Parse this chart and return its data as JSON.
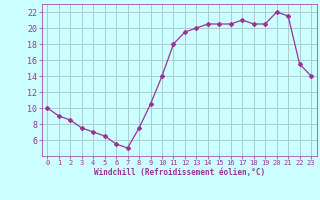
{
  "x": [
    0,
    1,
    2,
    3,
    4,
    5,
    6,
    7,
    8,
    9,
    10,
    11,
    12,
    13,
    14,
    15,
    16,
    17,
    18,
    19,
    20,
    21,
    22,
    23
  ],
  "y": [
    10,
    9,
    8.5,
    7.5,
    7,
    6.5,
    5.5,
    5,
    7.5,
    10.5,
    14,
    18,
    19.5,
    20,
    20.5,
    20.5,
    20.5,
    21,
    20.5,
    20.5,
    22,
    21.5,
    15.5,
    14
  ],
  "line_color": "#993399",
  "marker": "D",
  "marker_size": 2,
  "bg_color": "#ccffff",
  "grid_color": "#aacccc",
  "xlabel": "Windchill (Refroidissement éolien,°C)",
  "xlabel_color": "#993399",
  "tick_color": "#993399",
  "ylim": [
    4,
    23
  ],
  "xlim": [
    -0.5,
    23.5
  ],
  "yticks": [
    6,
    8,
    10,
    12,
    14,
    16,
    18,
    20,
    22
  ],
  "xticks": [
    0,
    1,
    2,
    3,
    4,
    5,
    6,
    7,
    8,
    9,
    10,
    11,
    12,
    13,
    14,
    15,
    16,
    17,
    18,
    19,
    20,
    21,
    22,
    23
  ]
}
